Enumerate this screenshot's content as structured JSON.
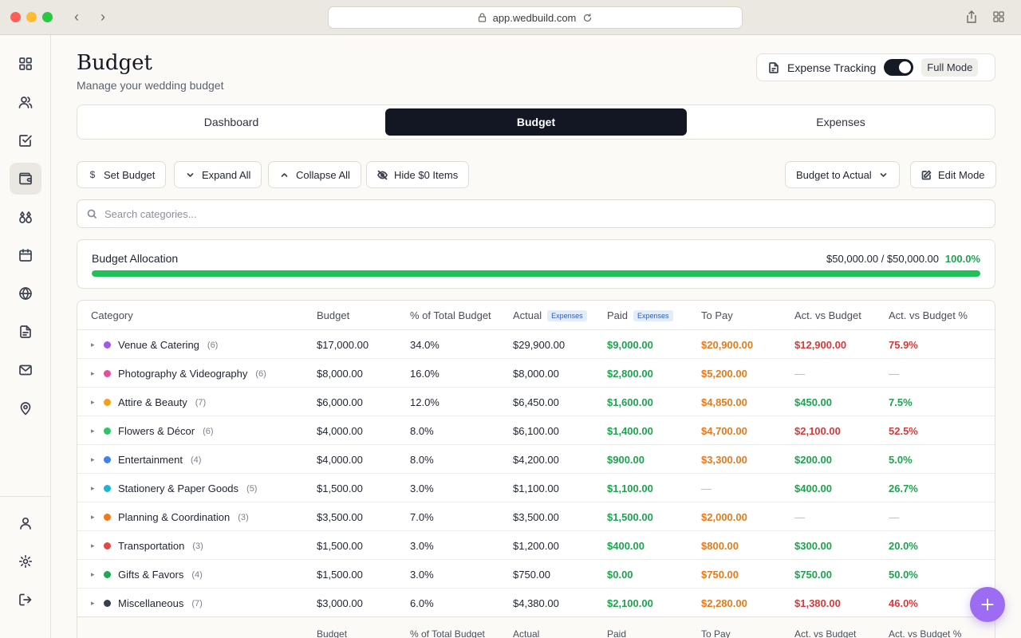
{
  "browser": {
    "url": "app.wedbuild.com"
  },
  "sidebar": {
    "items": [
      {
        "name": "grid-icon"
      },
      {
        "name": "users-icon"
      },
      {
        "name": "checklist-icon"
      },
      {
        "name": "wallet-icon",
        "active": true
      },
      {
        "name": "rings-icon"
      },
      {
        "name": "calendar-icon"
      },
      {
        "name": "globe-icon"
      },
      {
        "name": "document-icon"
      },
      {
        "name": "mail-icon"
      },
      {
        "name": "map-pin-icon"
      }
    ],
    "bottom": [
      {
        "name": "user-icon"
      },
      {
        "name": "gear-icon"
      },
      {
        "name": "logout-icon"
      }
    ]
  },
  "header": {
    "title": "Budget",
    "subtitle": "Manage your wedding budget",
    "expense_tracking_label": "Expense Tracking",
    "expense_tracking_on": true,
    "mode_label": "Full Mode"
  },
  "tabs": [
    {
      "label": "Dashboard"
    },
    {
      "label": "Budget",
      "active": true
    },
    {
      "label": "Expenses"
    }
  ],
  "toolbar": {
    "set_budget": "Set Budget",
    "expand_all": "Expand All",
    "collapse_all": "Collapse All",
    "hide_zero": "Hide $0 Items",
    "view_select": "Budget to Actual",
    "edit_mode": "Edit Mode"
  },
  "search": {
    "placeholder": "Search categories..."
  },
  "allocation": {
    "title": "Budget Allocation",
    "amount": "$50,000.00 / $50,000.00",
    "percent": "100.0%",
    "fill_fraction": 1.0
  },
  "table": {
    "columns": {
      "category": "Category",
      "budget": "Budget",
      "pct_total": "% of Total Budget",
      "actual": "Actual",
      "actual_badge": "Expenses",
      "paid": "Paid",
      "paid_badge": "Expenses",
      "to_pay": "To Pay",
      "act_vs_budget": "Act. vs Budget",
      "act_vs_budget_pct": "Act. vs Budget %"
    },
    "rows": [
      {
        "name": "Venue & Catering",
        "count": "(6)",
        "color": "#a259e6",
        "budget": "$17,000.00",
        "pct": "34.0%",
        "actual": "$29,900.00",
        "paid": "$9,000.00",
        "to_pay": "$20,900.00",
        "diff": "$12,900.00",
        "diff_pct": "75.9%",
        "status": "over"
      },
      {
        "name": "Photography & Videography",
        "count": "(6)",
        "color": "#e0529c",
        "budget": "$8,000.00",
        "pct": "16.0%",
        "actual": "$8,000.00",
        "paid": "$2,800.00",
        "to_pay": "$5,200.00",
        "diff": "—",
        "diff_pct": "—",
        "status": "even"
      },
      {
        "name": "Attire & Beauty",
        "count": "(7)",
        "color": "#f0a21c",
        "budget": "$6,000.00",
        "pct": "12.0%",
        "actual": "$6,450.00",
        "paid": "$1,600.00",
        "to_pay": "$4,850.00",
        "diff": "$450.00",
        "diff_pct": "7.5%",
        "status": "under"
      },
      {
        "name": "Flowers & Décor",
        "count": "(6)",
        "color": "#2fc46a",
        "budget": "$4,000.00",
        "pct": "8.0%",
        "actual": "$6,100.00",
        "paid": "$1,400.00",
        "to_pay": "$4,700.00",
        "diff": "$2,100.00",
        "diff_pct": "52.5%",
        "status": "over"
      },
      {
        "name": "Entertainment",
        "count": "(4)",
        "color": "#3f82ee",
        "budget": "$4,000.00",
        "pct": "8.0%",
        "actual": "$4,200.00",
        "paid": "$900.00",
        "to_pay": "$3,300.00",
        "diff": "$200.00",
        "diff_pct": "5.0%",
        "status": "under"
      },
      {
        "name": "Stationery & Paper Goods",
        "count": "(5)",
        "color": "#1fb3d6",
        "budget": "$1,500.00",
        "pct": "3.0%",
        "actual": "$1,100.00",
        "paid": "$1,100.00",
        "to_pay": "—",
        "diff": "$400.00",
        "diff_pct": "26.7%",
        "status": "under"
      },
      {
        "name": "Planning & Coordination",
        "count": "(3)",
        "color": "#f07a1c",
        "budget": "$3,500.00",
        "pct": "7.0%",
        "actual": "$3,500.00",
        "paid": "$1,500.00",
        "to_pay": "$2,000.00",
        "diff": "—",
        "diff_pct": "—",
        "status": "even"
      },
      {
        "name": "Transportation",
        "count": "(3)",
        "color": "#e34848",
        "budget": "$1,500.00",
        "pct": "3.0%",
        "actual": "$1,200.00",
        "paid": "$400.00",
        "to_pay": "$800.00",
        "diff": "$300.00",
        "diff_pct": "20.0%",
        "status": "under"
      },
      {
        "name": "Gifts & Favors",
        "count": "(4)",
        "color": "#1fa855",
        "budget": "$1,500.00",
        "pct": "3.0%",
        "actual": "$750.00",
        "paid": "$0.00",
        "to_pay": "$750.00",
        "diff": "$750.00",
        "diff_pct": "50.0%",
        "status": "under"
      },
      {
        "name": "Miscellaneous",
        "count": "(7)",
        "color": "#3a3f4d",
        "budget": "$3,000.00",
        "pct": "6.0%",
        "actual": "$4,380.00",
        "paid": "$2,100.00",
        "to_pay": "$2,280.00",
        "diff": "$1,380.00",
        "diff_pct": "46.0%",
        "status": "over"
      }
    ],
    "footer": {
      "budget": "Budget",
      "pct_total": "% of Total Budget",
      "actual": "Actual",
      "paid": "Paid",
      "to_pay": "To Pay",
      "act_vs_budget": "Act. vs Budget",
      "act_vs_budget_pct": "Act. vs Budget %"
    }
  },
  "colors": {
    "accent_dark": "#121723",
    "green": "#1ea34f",
    "orange": "#e57a1b",
    "red": "#d63a3a",
    "fab": "#9c6cf2"
  }
}
